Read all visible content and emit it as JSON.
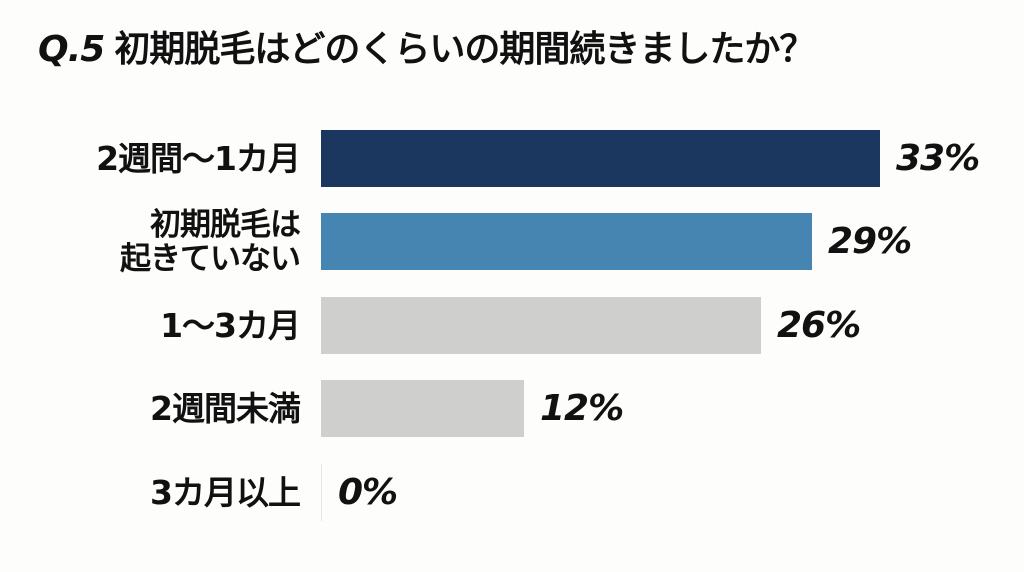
{
  "title": {
    "prefix": "Q.5",
    "text": "初期脱毛はどのくらいの期間続きましたか？"
  },
  "colors": {
    "background": "#fdfdfb",
    "bar_primary": "#1b365f",
    "bar_secondary": "#4684b2",
    "bar_neutral": "#cfcfcd",
    "text": "#111111"
  },
  "rows": [
    {
      "label_line1": "2週間〜1カ月",
      "label_line2": "",
      "value_label": "33%",
      "value": 33,
      "color": "#1b365f"
    },
    {
      "label_line1": "初期脱毛は",
      "label_line2": "起きていない",
      "value_label": "29%",
      "value": 29,
      "color": "#4684b2"
    },
    {
      "label_line1": "1〜3カ月",
      "label_line2": "",
      "value_label": "26%",
      "value": 26,
      "color": "#cfcfcd"
    },
    {
      "label_line1": "2週間未満",
      "label_line2": "",
      "value_label": "12%",
      "value": 12,
      "color": "#cfcfcd"
    },
    {
      "label_line1": "3カ月以上",
      "label_line2": "",
      "value_label": "0%",
      "value": 0,
      "color": "#cfcfcd"
    }
  ],
  "chart_data": {
    "type": "bar",
    "orientation": "horizontal",
    "title": "Q.5 初期脱毛はどのくらいの期間続きましたか？",
    "categories": [
      "2週間〜1カ月",
      "初期脱毛は起きていない",
      "1〜3カ月",
      "2週間未満",
      "3カ月以上"
    ],
    "values": [
      33,
      29,
      26,
      12,
      0
    ],
    "value_labels": [
      "33%",
      "29%",
      "26%",
      "12%",
      "0%"
    ],
    "bar_colors": [
      "#1b365f",
      "#4684b2",
      "#cfcfcd",
      "#cfcfcd",
      "#cfcfcd"
    ],
    "xlabel": "",
    "ylabel": "",
    "unit": "%",
    "grid": false,
    "legend": "none",
    "xlim": [
      0,
      33
    ]
  }
}
